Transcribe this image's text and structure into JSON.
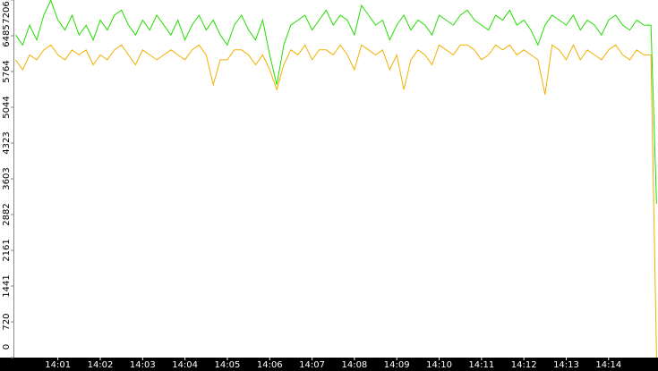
{
  "chart_data": {
    "type": "line",
    "x": [
      0,
      10,
      20,
      30,
      40,
      50,
      60,
      70,
      80,
      90,
      100,
      110,
      120,
      130,
      140,
      150,
      160,
      170,
      180,
      190,
      200,
      210,
      220,
      230,
      240,
      250,
      260,
      270,
      280,
      290,
      300,
      310,
      320,
      330,
      340,
      350,
      360,
      370,
      380,
      390,
      400,
      410,
      420,
      430,
      440,
      450,
      460,
      470,
      480,
      490,
      500,
      510,
      520,
      530,
      540,
      550,
      560,
      570,
      580,
      590,
      600,
      610,
      620,
      630,
      640,
      650,
      660,
      670,
      680,
      690,
      700,
      710,
      720,
      730,
      740,
      750,
      760,
      770,
      780,
      790,
      800,
      810,
      820,
      830,
      840,
      850,
      860,
      870,
      880,
      890,
      900,
      908
    ],
    "series": [
      {
        "color": "#22dd00",
        "values": [
          6500,
          6300,
          6700,
          6400,
          6900,
          7200,
          6800,
          6600,
          6900,
          6500,
          6700,
          6400,
          6800,
          6600,
          6900,
          7000,
          6700,
          6500,
          6800,
          6600,
          6900,
          6700,
          6500,
          6800,
          6400,
          6700,
          6900,
          6600,
          6800,
          6500,
          6300,
          6700,
          6900,
          6600,
          6400,
          6800,
          6100,
          5500,
          6300,
          6700,
          6800,
          6900,
          6600,
          6800,
          7000,
          6700,
          6900,
          6800,
          6500,
          7100,
          6900,
          6700,
          6800,
          6400,
          6700,
          6900,
          6600,
          6800,
          6700,
          6500,
          6900,
          6800,
          6700,
          6900,
          7000,
          6800,
          6700,
          6600,
          6900,
          6800,
          7000,
          6700,
          6800,
          6600,
          6300,
          6700,
          6900,
          6800,
          6700,
          6900,
          6600,
          6800,
          6700,
          6500,
          6800,
          6900,
          6700,
          6600,
          6800,
          6700,
          6700,
          3100
        ]
      },
      {
        "color": "#f0b000",
        "values": [
          6000,
          5800,
          6100,
          6000,
          6200,
          6300,
          6100,
          6000,
          6200,
          6100,
          6200,
          5900,
          6100,
          6000,
          6200,
          6300,
          6100,
          5900,
          6200,
          6100,
          6000,
          6100,
          6200,
          6100,
          6000,
          6200,
          6300,
          6100,
          5500,
          6000,
          6000,
          6200,
          6200,
          6100,
          5900,
          6100,
          5800,
          5400,
          5900,
          6200,
          6100,
          6300,
          6000,
          6200,
          6200,
          6100,
          6300,
          6100,
          5800,
          6300,
          6200,
          6100,
          6200,
          5800,
          6100,
          5400,
          6000,
          6200,
          6100,
          5900,
          6300,
          6200,
          6100,
          6300,
          6300,
          6200,
          6000,
          6100,
          6300,
          6200,
          6300,
          6100,
          6200,
          6100,
          6000,
          5300,
          6300,
          6200,
          6000,
          6300,
          6000,
          6200,
          6100,
          6000,
          6200,
          6300,
          6100,
          6000,
          6200,
          6100,
          6100,
          0
        ]
      }
    ],
    "xlim": [
      -3,
      910
    ],
    "xticks": [
      {
        "value": 60,
        "label": "14:01"
      },
      {
        "value": 120,
        "label": "14:02"
      },
      {
        "value": 180,
        "label": "14:03"
      },
      {
        "value": 240,
        "label": "14:04"
      },
      {
        "value": 300,
        "label": "14:05"
      },
      {
        "value": 360,
        "label": "14:06"
      },
      {
        "value": 420,
        "label": "14:07"
      },
      {
        "value": 480,
        "label": "14:08"
      },
      {
        "value": 540,
        "label": "14:09"
      },
      {
        "value": 600,
        "label": "14:10"
      },
      {
        "value": 660,
        "label": "14:11"
      },
      {
        "value": 720,
        "label": "14:12"
      },
      {
        "value": 780,
        "label": "14:13"
      },
      {
        "value": 840,
        "label": "14:14"
      }
    ],
    "ylim": [
      0,
      7206
    ],
    "yticks": [
      0,
      720,
      1441,
      2161,
      2882,
      3603,
      4323,
      5044,
      5764,
      6485,
      7206
    ]
  }
}
